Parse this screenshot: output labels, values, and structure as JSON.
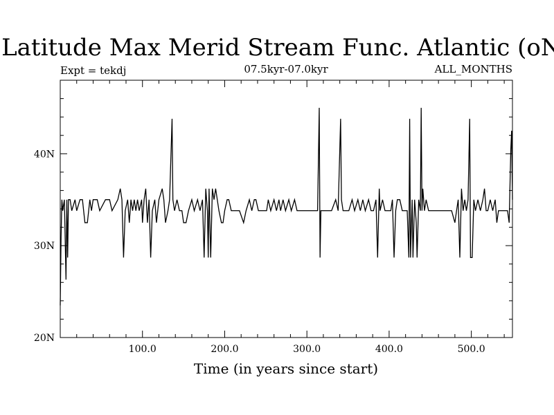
{
  "chart_data": {
    "type": "line",
    "title": "Latitude Max Merid Stream Func. Atlantic (oN)",
    "subtitle_left": "Expt = tekdj",
    "subtitle_center": "07.5kyr-07.0kyr",
    "subtitle_right": "ALL_MONTHS",
    "xlabel": "Time (in years since start)",
    "ylabel": "",
    "xlim": [
      0,
      550
    ],
    "ylim": [
      20,
      48
    ],
    "x_ticks": [
      {
        "value": 100,
        "label": "100.0"
      },
      {
        "value": 200,
        "label": "200.0"
      },
      {
        "value": 300,
        "label": "300.0"
      },
      {
        "value": 400,
        "label": "400.0"
      },
      {
        "value": 500,
        "label": "500.0"
      }
    ],
    "y_ticks": [
      {
        "value": 20,
        "label": "20N"
      },
      {
        "value": 30,
        "label": "30N"
      },
      {
        "value": 40,
        "label": "40N"
      }
    ],
    "baseline": 33.8,
    "series": [
      {
        "events": [
          [
            0,
            23.5
          ],
          [
            1,
            31
          ],
          [
            2,
            35
          ],
          [
            3,
            33.8
          ],
          [
            5,
            35
          ],
          [
            7,
            26.3
          ],
          [
            8,
            35
          ],
          [
            9,
            28.7
          ],
          [
            10,
            35
          ],
          [
            12,
            35
          ],
          [
            14,
            33.8
          ],
          [
            18,
            35
          ],
          [
            20,
            33.8
          ],
          [
            24,
            35
          ],
          [
            27,
            35
          ],
          [
            30,
            32.5
          ],
          [
            33,
            32.5
          ],
          [
            36,
            35
          ],
          [
            38,
            33.8
          ],
          [
            40,
            35
          ],
          [
            45,
            35
          ],
          [
            48,
            33.8
          ],
          [
            55,
            35
          ],
          [
            60,
            35
          ],
          [
            63,
            33.8
          ],
          [
            70,
            35
          ],
          [
            73,
            36.2
          ],
          [
            75,
            35
          ],
          [
            77,
            28.7
          ],
          [
            79,
            33.8
          ],
          [
            82,
            35
          ],
          [
            84,
            32.5
          ],
          [
            86,
            35
          ],
          [
            88,
            33.8
          ],
          [
            90,
            35
          ],
          [
            92,
            33.8
          ],
          [
            94,
            35
          ],
          [
            96,
            33.8
          ],
          [
            99,
            35
          ],
          [
            100,
            32.5
          ],
          [
            102,
            35
          ],
          [
            104,
            36.2
          ],
          [
            106,
            32.5
          ],
          [
            108,
            35
          ],
          [
            110,
            28.7
          ],
          [
            112,
            33.8
          ],
          [
            115,
            35
          ],
          [
            117,
            32.5
          ],
          [
            120,
            35
          ],
          [
            124,
            36.2
          ],
          [
            126,
            35
          ],
          [
            128,
            32.5
          ],
          [
            131,
            33.8
          ],
          [
            133,
            35
          ],
          [
            136,
            43.8
          ],
          [
            137,
            35
          ],
          [
            139,
            33.8
          ],
          [
            142,
            35
          ],
          [
            145,
            33.8
          ],
          [
            148,
            33.8
          ],
          [
            150,
            32.5
          ],
          [
            153,
            32.5
          ],
          [
            156,
            33.8
          ],
          [
            160,
            35
          ],
          [
            163,
            33.8
          ],
          [
            167,
            35
          ],
          [
            170,
            33.8
          ],
          [
            173,
            35
          ],
          [
            175,
            28.7
          ],
          [
            177,
            36.2
          ],
          [
            179,
            33.8
          ],
          [
            180,
            28.7
          ],
          [
            181,
            36.2
          ],
          [
            183,
            28.7
          ],
          [
            185,
            36.2
          ],
          [
            187,
            35
          ],
          [
            189,
            36.2
          ],
          [
            191,
            35
          ],
          [
            193,
            33.8
          ],
          [
            196,
            32.5
          ],
          [
            198,
            32.5
          ],
          [
            200,
            33.8
          ],
          [
            203,
            35
          ],
          [
            205,
            35
          ],
          [
            208,
            33.8
          ],
          [
            212,
            33.8
          ],
          [
            218,
            33.8
          ],
          [
            223,
            32.5
          ],
          [
            226,
            33.8
          ],
          [
            230,
            35
          ],
          [
            233,
            33.8
          ],
          [
            236,
            35
          ],
          [
            238,
            35
          ],
          [
            241,
            33.8
          ],
          [
            246,
            33.8
          ],
          [
            251,
            33.8
          ],
          [
            253,
            35
          ],
          [
            256,
            33.8
          ],
          [
            260,
            35
          ],
          [
            263,
            33.8
          ],
          [
            266,
            35
          ],
          [
            268,
            33.8
          ],
          [
            271,
            35
          ],
          [
            274,
            33.8
          ],
          [
            278,
            35
          ],
          [
            281,
            33.8
          ],
          [
            285,
            35
          ],
          [
            288,
            33.8
          ],
          [
            293,
            33.8
          ],
          [
            298,
            33.8
          ],
          [
            303,
            33.8
          ],
          [
            308,
            33.8
          ],
          [
            313,
            33.8
          ],
          [
            315,
            45
          ],
          [
            316,
            28.7
          ],
          [
            317,
            33.8
          ],
          [
            321,
            33.8
          ],
          [
            326,
            33.8
          ],
          [
            330,
            33.8
          ],
          [
            335,
            35
          ],
          [
            338,
            33.8
          ],
          [
            341,
            43.8
          ],
          [
            342,
            35
          ],
          [
            344,
            33.8
          ],
          [
            347,
            33.8
          ],
          [
            351,
            33.8
          ],
          [
            355,
            35
          ],
          [
            358,
            33.8
          ],
          [
            362,
            35
          ],
          [
            365,
            33.8
          ],
          [
            368,
            35
          ],
          [
            371,
            33.8
          ],
          [
            375,
            35
          ],
          [
            378,
            33.8
          ],
          [
            381,
            33.8
          ],
          [
            384,
            35
          ],
          [
            386,
            28.7
          ],
          [
            388,
            36.2
          ],
          [
            389,
            33.8
          ],
          [
            392,
            35
          ],
          [
            395,
            33.8
          ],
          [
            399,
            33.8
          ],
          [
            402,
            33.8
          ],
          [
            404,
            35
          ],
          [
            406,
            28.7
          ],
          [
            408,
            33.8
          ],
          [
            410,
            35
          ],
          [
            413,
            35
          ],
          [
            416,
            33.8
          ],
          [
            419,
            33.8
          ],
          [
            422,
            33.8
          ],
          [
            424,
            28.7
          ],
          [
            425,
            43.8
          ],
          [
            426,
            28.7
          ],
          [
            428,
            35
          ],
          [
            429,
            28.7
          ],
          [
            431,
            35
          ],
          [
            433,
            32.5
          ],
          [
            434,
            28.7
          ],
          [
            436,
            35
          ],
          [
            438,
            33.8
          ],
          [
            439,
            45
          ],
          [
            440,
            33.8
          ],
          [
            441,
            36.2
          ],
          [
            443,
            33.8
          ],
          [
            445,
            35
          ],
          [
            448,
            33.8
          ],
          [
            452,
            33.8
          ],
          [
            456,
            33.8
          ],
          [
            460,
            33.8
          ],
          [
            464,
            33.8
          ],
          [
            468,
            33.8
          ],
          [
            472,
            33.8
          ],
          [
            476,
            33.8
          ],
          [
            480,
            32.5
          ],
          [
            482,
            33.8
          ],
          [
            484,
            35
          ],
          [
            486,
            28.7
          ],
          [
            488,
            36.2
          ],
          [
            490,
            33.8
          ],
          [
            492,
            35
          ],
          [
            494,
            33.8
          ],
          [
            496,
            35
          ],
          [
            498,
            43.8
          ],
          [
            499,
            28.7
          ],
          [
            501,
            28.7
          ],
          [
            503,
            35
          ],
          [
            505,
            33.8
          ],
          [
            508,
            35
          ],
          [
            511,
            33.8
          ],
          [
            514,
            35
          ],
          [
            516,
            36.2
          ],
          [
            518,
            33.8
          ],
          [
            520,
            33.8
          ],
          [
            523,
            35
          ],
          [
            526,
            33.8
          ],
          [
            529,
            35
          ],
          [
            531,
            32.5
          ],
          [
            533,
            33.8
          ],
          [
            536,
            33.8
          ],
          [
            540,
            33.8
          ],
          [
            544,
            33.8
          ],
          [
            546,
            32.5
          ],
          [
            548,
            40.5
          ],
          [
            549,
            42.5
          ],
          [
            550,
            35
          ]
        ]
      }
    ],
    "grid": false
  }
}
